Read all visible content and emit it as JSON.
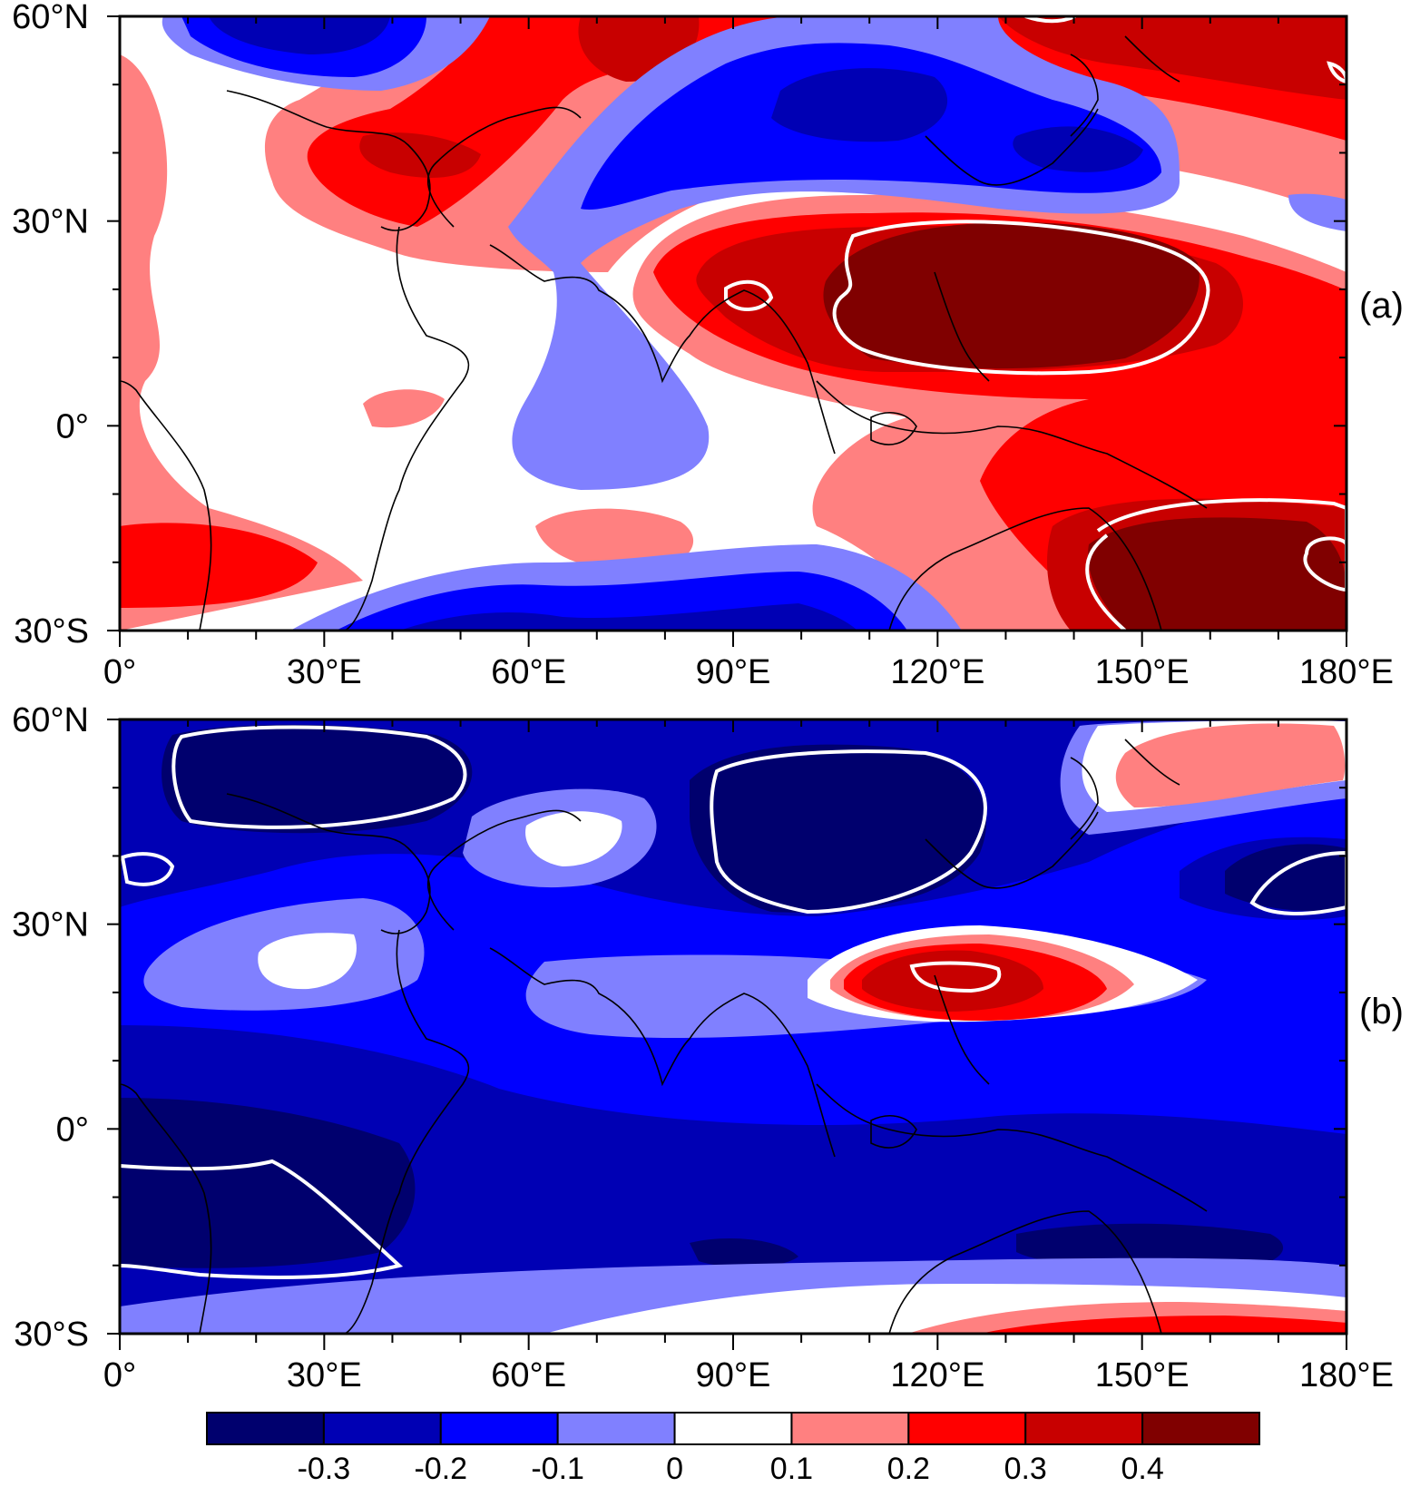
{
  "panels": [
    {
      "label": "(a)"
    },
    {
      "label": "(b)"
    }
  ],
  "axes": {
    "lat_ticks": [
      "60°N",
      "30°N",
      "0°",
      "30°S"
    ],
    "lon_ticks": [
      "0°",
      "30°E",
      "60°E",
      "90°E",
      "120°E",
      "150°E",
      "180°E"
    ],
    "lat_range": [
      -30,
      60
    ],
    "lon_range": [
      0,
      180
    ]
  },
  "colorbar": {
    "labels": [
      "-0.3",
      "-0.2",
      "-0.1",
      "0",
      "0.1",
      "0.2",
      "0.3",
      "0.4"
    ],
    "colors": [
      "#00006e",
      "#0000b4",
      "#0000ff",
      "#8080ff",
      "#ffffff",
      "#ff8080",
      "#ff0000",
      "#c80000",
      "#800000"
    ]
  },
  "colors": {
    "significance_contour": "#ffffff",
    "coastline": "#000000"
  }
}
